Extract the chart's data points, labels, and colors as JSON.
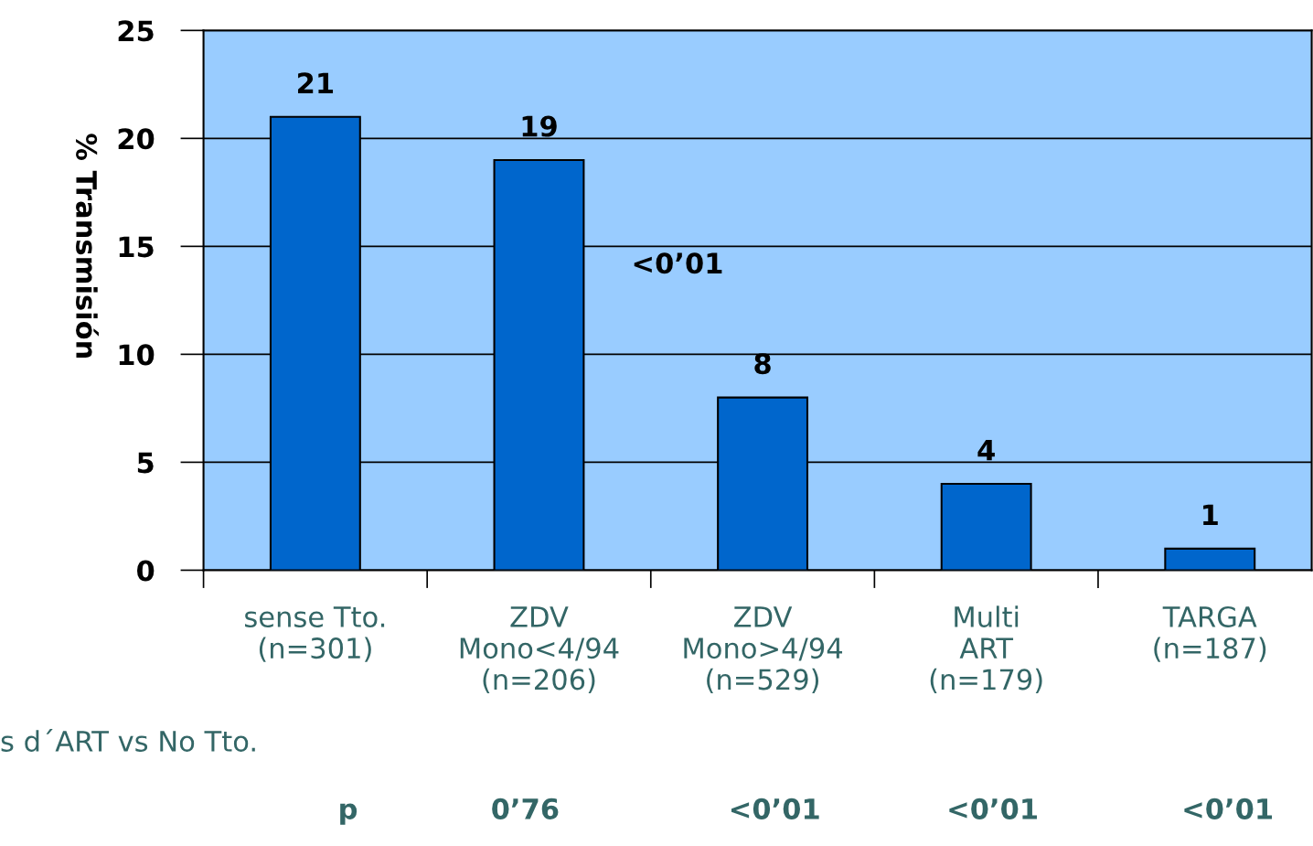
{
  "chart_data": {
    "type": "bar",
    "categories": [
      "sense Tto.\n(n=301)",
      "ZDV\nMono<4/94\n(n=206)",
      "ZDV\nMono>4/94\n(n=529)",
      "Multi\nART\n(n=179)",
      "TARGA\n(n=187)"
    ],
    "values": [
      21,
      19,
      8,
      4,
      1
    ],
    "color": "#0066cc",
    "ylabel": "% Transmisión",
    "ylim": [
      0,
      25
    ],
    "yticks": [
      0,
      5,
      10,
      15,
      20,
      25
    ],
    "grid": "y",
    "data_labels": true,
    "annotations": [
      "<0’01",
      "s d´ART vs No Tto.",
      "p",
      "0’76",
      "<0’01",
      "<0’01",
      "<0’01"
    ]
  }
}
